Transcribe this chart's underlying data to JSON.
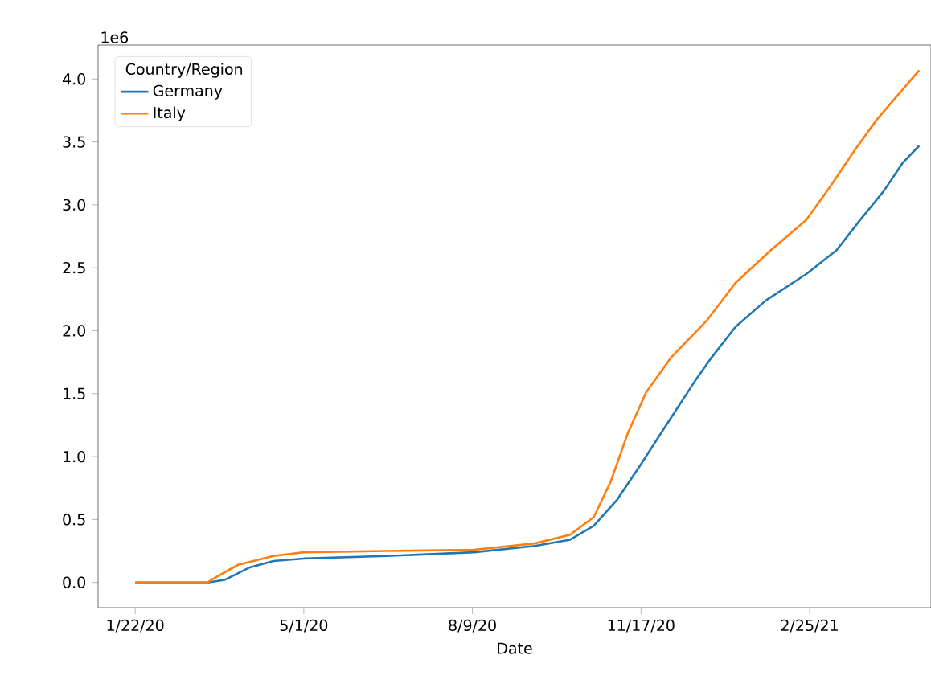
{
  "chart_data": {
    "type": "line",
    "xlabel": "Date",
    "legend_title": "Country/Region",
    "legend": "top left",
    "annotations": [
      "1e6"
    ],
    "xlim": [
      "2019-12-31",
      "2021-05-08"
    ],
    "ylim": [
      -0.2,
      4.27
    ],
    "xticks": [
      {
        "value": "2020-01-22",
        "label": "1/22/20"
      },
      {
        "value": "2020-05-01",
        "label": "5/1/20"
      },
      {
        "value": "2020-08-09",
        "label": "8/9/20"
      },
      {
        "value": "2020-11-17",
        "label": "11/17/20"
      },
      {
        "value": "2021-02-25",
        "label": "2/25/21"
      }
    ],
    "yticks": [
      {
        "value": 0,
        "label": "0.0"
      },
      {
        "value": 0.5,
        "label": "0.5"
      },
      {
        "value": 1,
        "label": "1.0"
      },
      {
        "value": 1.5,
        "label": "1.5"
      },
      {
        "value": 2,
        "label": "2.0"
      },
      {
        "value": 2.5,
        "label": "2.5"
      },
      {
        "value": 3,
        "label": "3.0"
      },
      {
        "value": 3.5,
        "label": "3.5"
      },
      {
        "value": 4,
        "label": "4.0"
      }
    ],
    "series": [
      {
        "name": "Germany",
        "color": "#1f77b4",
        "x": [
          "2020-01-22",
          "2020-03-05",
          "2020-03-15",
          "2020-03-30",
          "2020-04-13",
          "2020-05-01",
          "2020-06-19",
          "2020-08-10",
          "2020-09-15",
          "2020-10-06",
          "2020-10-20",
          "2020-11-03",
          "2020-11-17",
          "2020-12-01",
          "2020-12-19",
          "2020-12-29",
          "2021-01-12",
          "2021-01-30",
          "2021-02-23",
          "2021-03-13",
          "2021-03-27",
          "2021-04-10",
          "2021-04-21",
          "2021-05-01"
        ],
        "values": [
          0,
          0,
          0.02,
          0.12,
          0.17,
          0.19,
          0.21,
          0.24,
          0.29,
          0.34,
          0.45,
          0.66,
          0.94,
          1.23,
          1.6,
          1.79,
          2.03,
          2.24,
          2.45,
          2.64,
          2.88,
          3.11,
          3.33,
          3.47
        ]
      },
      {
        "name": "Italy",
        "color": "#ff7f0e",
        "x": [
          "2020-01-22",
          "2020-03-05",
          "2020-03-07",
          "2020-03-23",
          "2020-04-13",
          "2020-05-01",
          "2020-06-19",
          "2020-08-10",
          "2020-09-15",
          "2020-10-06",
          "2020-10-20",
          "2020-10-30",
          "2020-11-09",
          "2020-11-20",
          "2020-12-05",
          "2020-12-26",
          "2021-01-12",
          "2021-02-02",
          "2021-02-23",
          "2021-03-10",
          "2021-03-24",
          "2021-04-06",
          "2021-05-01"
        ],
        "values": [
          0,
          0,
          0.02,
          0.14,
          0.21,
          0.24,
          0.25,
          0.26,
          0.31,
          0.38,
          0.52,
          0.8,
          1.18,
          1.51,
          1.79,
          2.08,
          2.38,
          2.64,
          2.88,
          3.16,
          3.44,
          3.68,
          4.07
        ]
      }
    ]
  }
}
